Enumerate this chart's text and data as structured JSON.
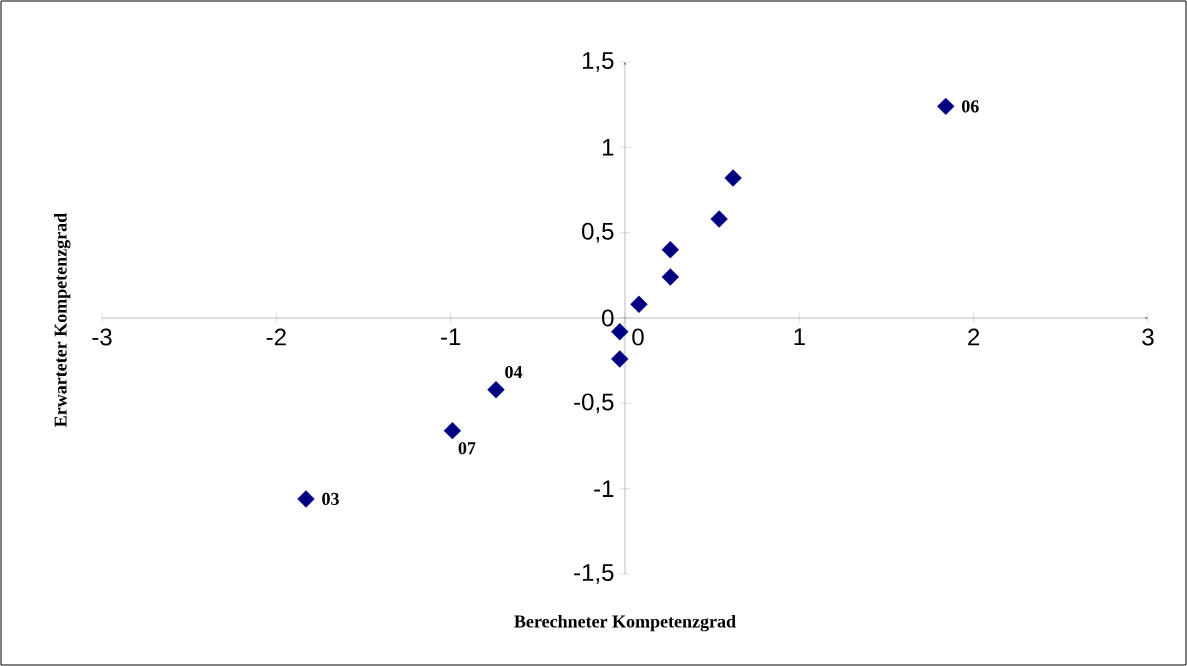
{
  "chart_data": {
    "type": "scatter",
    "xlabel": "Berechneter Kompetenzgrad",
    "ylabel": "Erwarteter Kompetenzgrad",
    "x": [
      -1.83,
      -0.99,
      -0.74,
      -0.03,
      -0.03,
      0.08,
      0.26,
      0.26,
      0.54,
      0.62,
      1.84
    ],
    "series": [
      {
        "color": "#000080",
        "values": [
          -1.06,
          -0.66,
          -0.42,
          -0.24,
          -0.08,
          0.08,
          0.24,
          0.4,
          0.58,
          0.82,
          1.24
        ]
      }
    ],
    "marker": "diamond",
    "xlim": [
      -3,
      3
    ],
    "xticks": [
      -3,
      -2,
      -1,
      0,
      1,
      2,
      3
    ],
    "ylim": [
      -1.5,
      1.5
    ],
    "yticks": [
      {
        "value": -1.5,
        "label": "-1,5"
      },
      -1,
      {
        "value": -0.5,
        "label": "-0,5"
      },
      0,
      {
        "value": 0.5,
        "label": "0,5"
      },
      1,
      {
        "value": 1.5,
        "label": "1,5"
      }
    ],
    "annotations": [
      {
        "text": "03",
        "x": -1.83,
        "y": -1.06
      },
      {
        "text": "07",
        "x": -0.99,
        "y": -0.66
      },
      {
        "text": "04",
        "x": -0.74,
        "y": -0.42
      },
      {
        "text": "06",
        "x": 1.84,
        "y": 1.24
      }
    ]
  }
}
